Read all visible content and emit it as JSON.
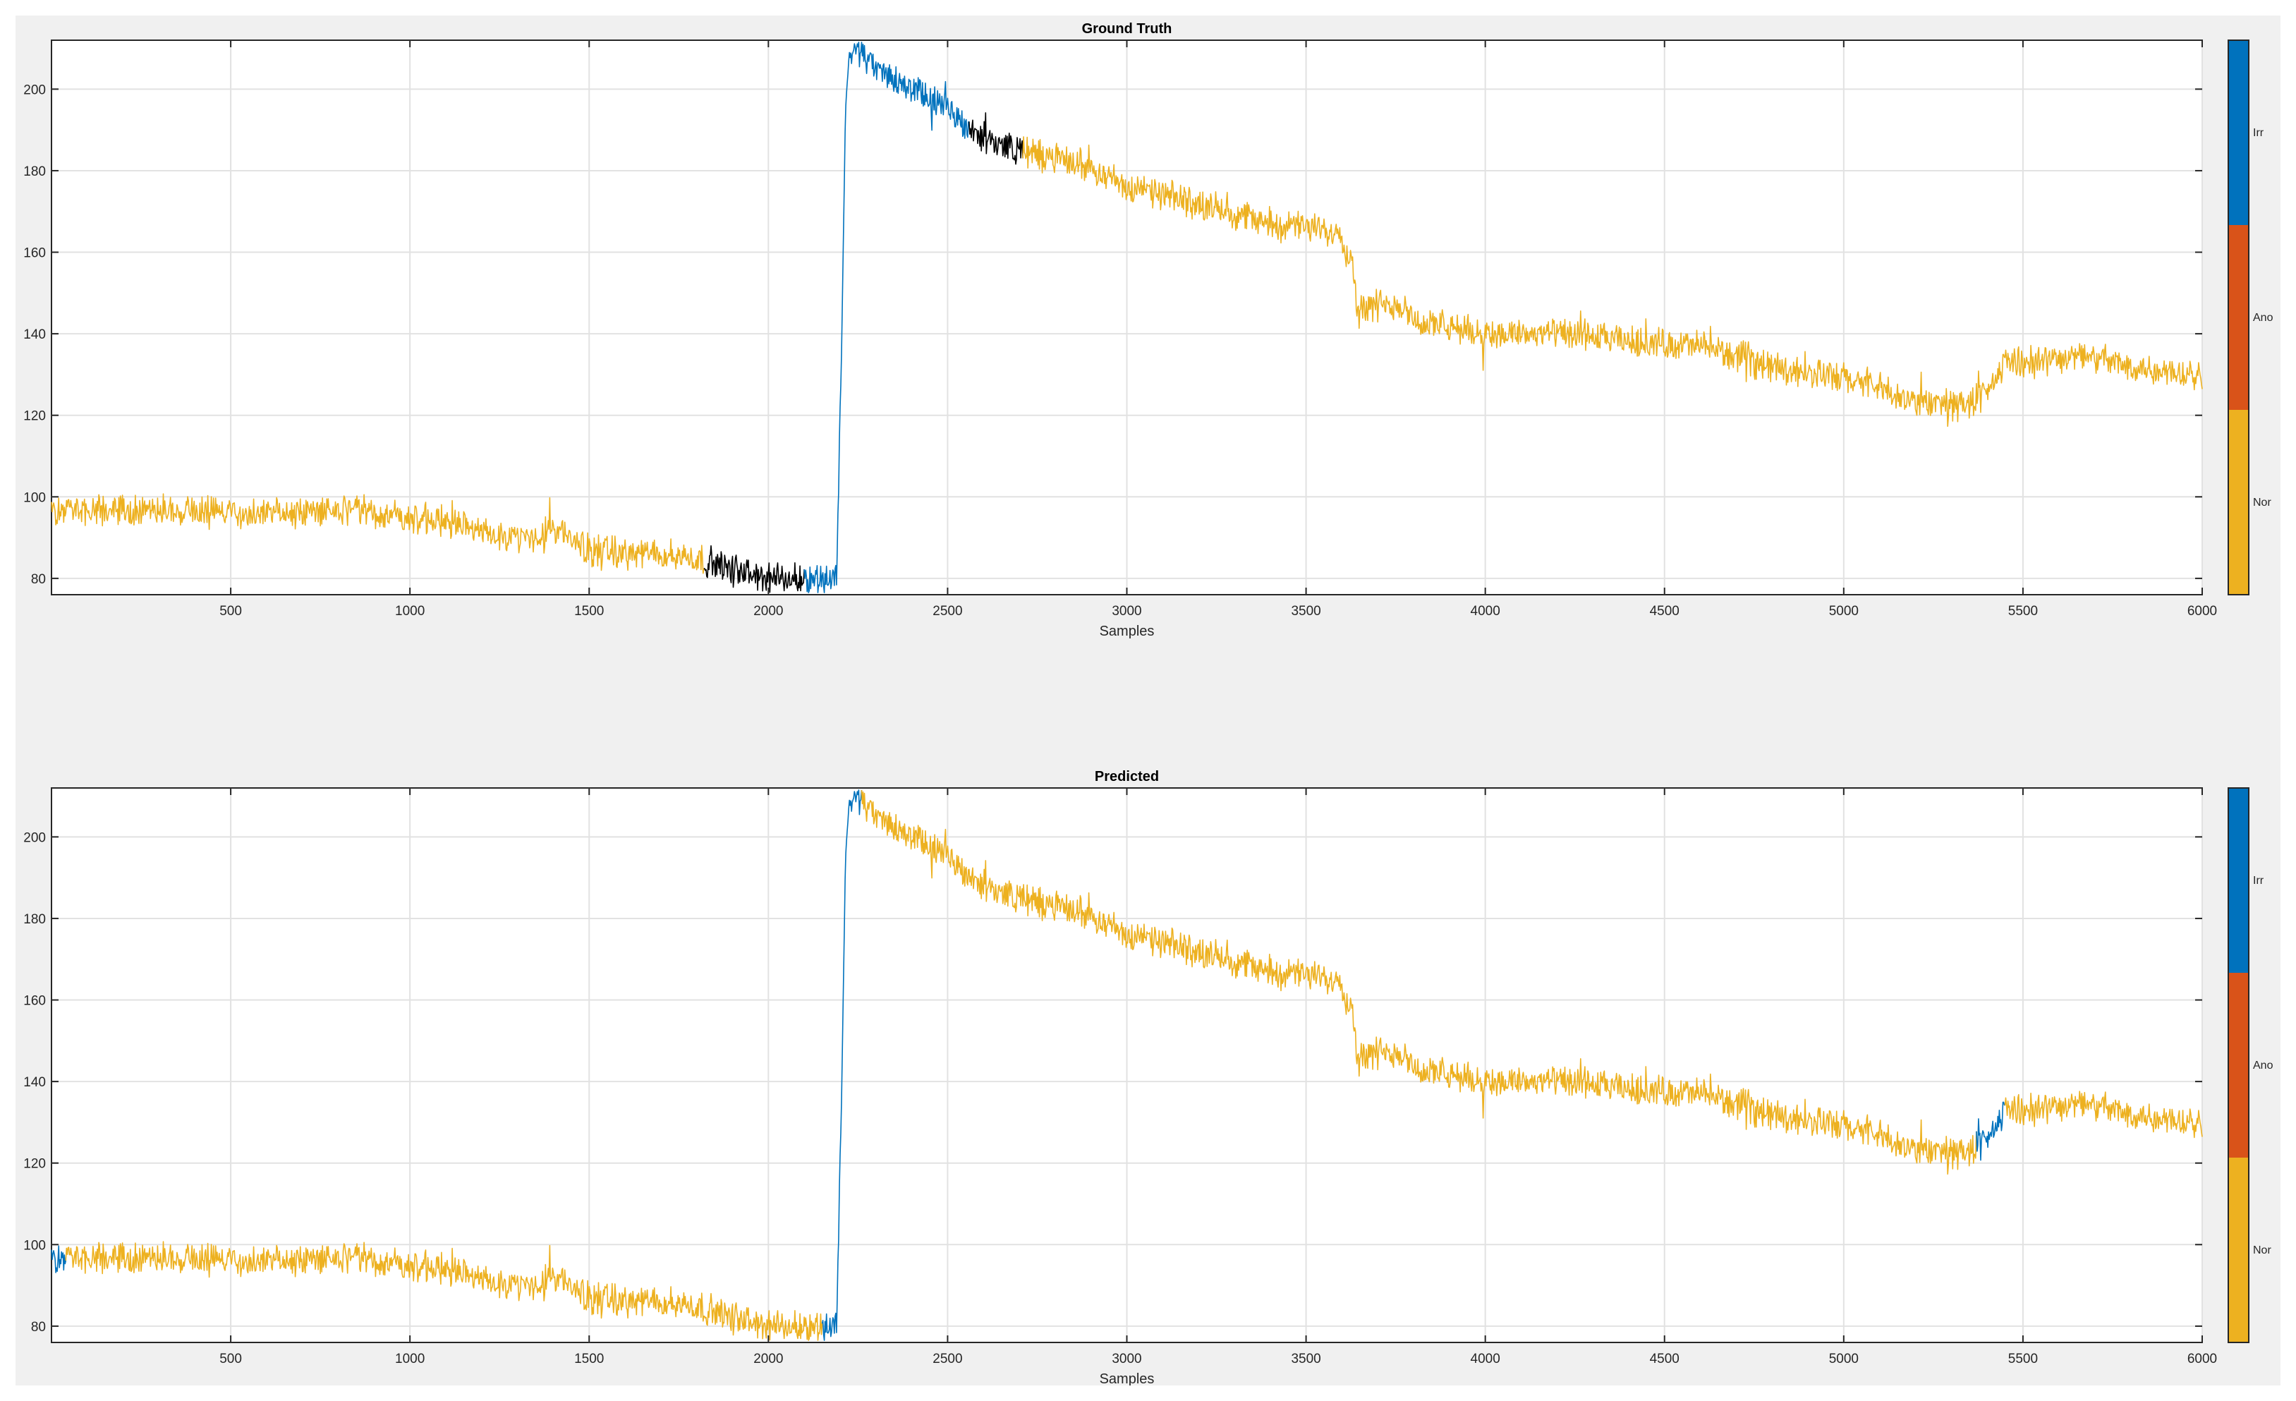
{
  "colors": {
    "Nor": "#EDB120",
    "Ano": "#D95319",
    "Irr": "#0072BD",
    "black_segment": "#000000",
    "figure_bg": "#f0f0f0",
    "grid": "#e2e2e2",
    "axes": "#262626"
  },
  "chart_data": [
    {
      "type": "line",
      "title": "Ground Truth",
      "xlabel": "Samples",
      "ylabel": "",
      "xlim": [
        0,
        6000
      ],
      "ylim": [
        76,
        212
      ],
      "xticks": [
        500,
        1000,
        1500,
        2000,
        2500,
        3000,
        3500,
        4000,
        4500,
        5000,
        5500,
        6000
      ],
      "yticks": [
        80,
        100,
        120,
        140,
        160,
        180,
        200
      ],
      "grid": true,
      "colorbar": {
        "labels": [
          "Nor",
          "Ano",
          "Irr"
        ],
        "colors": [
          "#EDB120",
          "#D95319",
          "#0072BD"
        ]
      },
      "signal_trend": {
        "x": [
          0,
          150,
          300,
          450,
          600,
          750,
          900,
          1000,
          1100,
          1200,
          1300,
          1400,
          1500,
          1600,
          1700,
          1800,
          1900,
          2000,
          2100,
          2150,
          2190,
          2205,
          2215,
          2225,
          2250,
          2300,
          2400,
          2500,
          2600,
          2700,
          2800,
          2900,
          3000,
          3200,
          3400,
          3600,
          3610,
          3630,
          3640,
          3780,
          3800,
          4000,
          4200,
          4400,
          4600,
          4800,
          5000,
          5100,
          5150,
          5250,
          5350,
          5400,
          5430,
          5450,
          5550,
          5650,
          5800,
          6000
        ],
        "y": [
          97,
          96,
          97,
          97,
          95,
          97,
          96,
          95,
          94,
          92,
          89,
          92,
          87,
          86,
          86,
          85,
          82,
          80,
          80,
          80,
          80,
          140,
          195,
          208,
          210,
          205,
          200,
          195,
          188,
          185,
          183,
          181,
          176,
          172,
          167,
          165,
          160,
          158,
          147,
          147,
          143,
          140,
          140,
          138,
          137,
          132,
          129,
          127,
          124,
          123,
          123,
          125,
          130,
          133,
          133,
          135,
          132,
          130
        ]
      },
      "class_segments": [
        {
          "class": "Nor",
          "x": [
            0,
            1820
          ]
        },
        {
          "class": "black",
          "x": [
            1820,
            2100
          ]
        },
        {
          "class": "Irr",
          "x": [
            2100,
            2560
          ]
        },
        {
          "class": "black",
          "x": [
            2560,
            2710
          ]
        },
        {
          "class": "Nor",
          "x": [
            2710,
            6000
          ]
        }
      ]
    },
    {
      "type": "line",
      "title": "Predicted",
      "xlabel": "Samples",
      "ylabel": "",
      "xlim": [
        0,
        6000
      ],
      "ylim": [
        76,
        212
      ],
      "xticks": [
        500,
        1000,
        1500,
        2000,
        2500,
        3000,
        3500,
        4000,
        4500,
        5000,
        5500,
        6000
      ],
      "yticks": [
        80,
        100,
        120,
        140,
        160,
        180,
        200
      ],
      "grid": true,
      "colorbar": {
        "labels": [
          "Nor",
          "Ano",
          "Irr"
        ],
        "colors": [
          "#EDB120",
          "#D95319",
          "#0072BD"
        ]
      },
      "signal_trend": {
        "x": [
          0,
          150,
          300,
          450,
          600,
          750,
          900,
          1000,
          1100,
          1200,
          1300,
          1400,
          1500,
          1600,
          1700,
          1800,
          1900,
          2000,
          2100,
          2150,
          2190,
          2205,
          2215,
          2225,
          2250,
          2300,
          2400,
          2500,
          2600,
          2700,
          2800,
          2900,
          3000,
          3200,
          3400,
          3600,
          3610,
          3630,
          3640,
          3780,
          3800,
          4000,
          4200,
          4400,
          4600,
          4800,
          5000,
          5100,
          5150,
          5250,
          5350,
          5400,
          5430,
          5450,
          5550,
          5650,
          5800,
          6000
        ],
        "y": [
          97,
          96,
          97,
          97,
          95,
          97,
          96,
          95,
          94,
          92,
          89,
          92,
          87,
          86,
          86,
          85,
          82,
          80,
          80,
          80,
          80,
          140,
          195,
          208,
          210,
          205,
          200,
          195,
          188,
          185,
          183,
          181,
          176,
          172,
          167,
          165,
          160,
          158,
          147,
          147,
          143,
          140,
          140,
          138,
          137,
          132,
          129,
          127,
          124,
          123,
          123,
          125,
          130,
          133,
          133,
          135,
          132,
          130
        ]
      },
      "class_segments": [
        {
          "class": "Irr",
          "x": [
            0,
            40
          ]
        },
        {
          "class": "Nor",
          "x": [
            40,
            2150
          ]
        },
        {
          "class": "Irr",
          "x": [
            2150,
            2260
          ]
        },
        {
          "class": "Nor",
          "x": [
            2260,
            5370
          ]
        },
        {
          "class": "Irr",
          "x": [
            5370,
            5450
          ]
        },
        {
          "class": "Nor",
          "x": [
            5450,
            6000
          ]
        }
      ]
    }
  ]
}
